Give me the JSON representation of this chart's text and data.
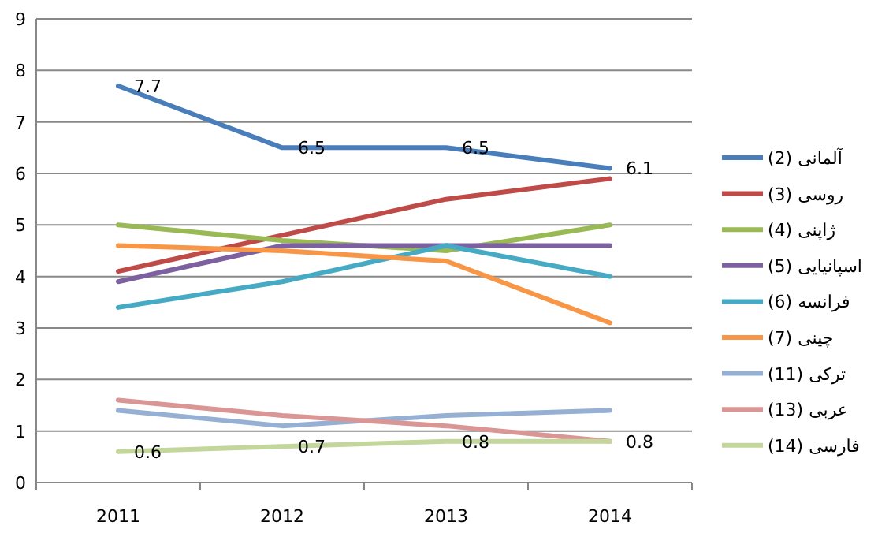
{
  "chart_data": {
    "type": "line",
    "categories": [
      "2011",
      "2012",
      "2013",
      "2014"
    ],
    "ylim": [
      0,
      9
    ],
    "yticks": [
      0,
      1,
      2,
      3,
      4,
      5,
      6,
      7,
      8,
      9
    ],
    "grid": "y",
    "legend": "right",
    "marker": "none",
    "line_style": "solid",
    "series": [
      {
        "name": "آلمانی (2)",
        "color": "#4a7ebb",
        "values": [
          7.7,
          6.5,
          6.5,
          6.1
        ],
        "value_labels": [
          "7.7",
          "6.5",
          "6.5",
          "6.1"
        ]
      },
      {
        "name": "روسی (3)",
        "color": "#be4b48",
        "values": [
          4.1,
          4.8,
          5.5,
          5.9
        ]
      },
      {
        "name": "ژاپنی (4)",
        "color": "#98b954",
        "values": [
          5.0,
          4.7,
          4.5,
          5.0
        ]
      },
      {
        "name": "اسپانیایی (5)",
        "color": "#7d60a0",
        "values": [
          3.9,
          4.6,
          4.6,
          4.6
        ]
      },
      {
        "name": "فرانسه (6)",
        "color": "#46aac5",
        "values": [
          3.4,
          3.9,
          4.6,
          4.0
        ]
      },
      {
        "name": "چینی (7)",
        "color": "#f79646",
        "values": [
          4.6,
          4.5,
          4.3,
          3.1
        ]
      },
      {
        "name": "ترکی (11)",
        "color": "#95b0d3",
        "values": [
          1.4,
          1.1,
          1.3,
          1.4
        ]
      },
      {
        "name": "عربی (13)",
        "color": "#d99694",
        "values": [
          1.6,
          1.3,
          1.1,
          0.8
        ]
      },
      {
        "name": "فارسی (14)",
        "color": "#c3d69b",
        "values": [
          0.6,
          0.7,
          0.8,
          0.8
        ],
        "value_labels": [
          "0.6",
          "0.7",
          "0.8",
          "0.8"
        ]
      }
    ]
  }
}
